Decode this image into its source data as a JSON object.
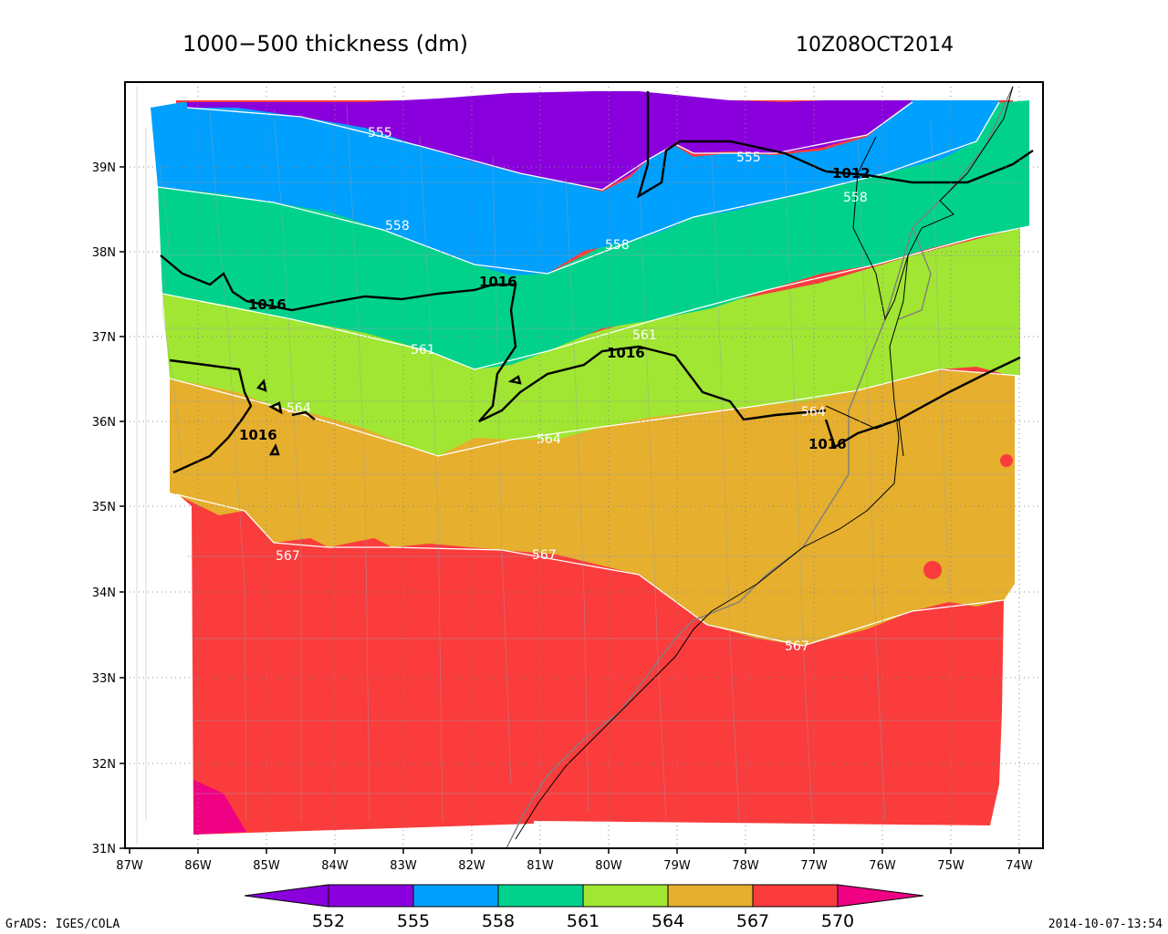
{
  "title": "1000−500 thickness (dm)",
  "valid_time": "10Z08OCT2014",
  "footer_left": "GrADS: IGES/COLA",
  "footer_right": "2014-10-07-13:54",
  "axes": {
    "lat_ticks": [
      "31N",
      "32N",
      "33N",
      "34N",
      "35N",
      "36N",
      "37N",
      "38N",
      "39N"
    ],
    "lon_ticks": [
      "87W",
      "86W",
      "85W",
      "84W",
      "83W",
      "82W",
      "81W",
      "80W",
      "79W",
      "78W",
      "77W",
      "76W",
      "75W",
      "74W"
    ]
  },
  "thickness_bands": [
    {
      "range": "552-555",
      "color": "#8a00dc"
    },
    {
      "range": "555-558",
      "color": "#00a0ff"
    },
    {
      "range": "558-561",
      "color": "#00d28c"
    },
    {
      "range": "561-564",
      "color": "#a0e632"
    },
    {
      "range": "564-567",
      "color": "#e6af2d"
    },
    {
      "range": "567-570",
      "color": "#fa3c3c"
    },
    {
      "range": "570+",
      "color": "#f00082"
    }
  ],
  "thickness_labels": [
    {
      "text": "555"
    },
    {
      "text": "555"
    },
    {
      "text": "558"
    },
    {
      "text": "558"
    },
    {
      "text": "558"
    },
    {
      "text": "561"
    },
    {
      "text": "561"
    },
    {
      "text": "564"
    },
    {
      "text": "564"
    },
    {
      "text": "564"
    },
    {
      "text": "567"
    },
    {
      "text": "567"
    },
    {
      "text": "567"
    }
  ],
  "isobar_labels": [
    {
      "text": "1012"
    },
    {
      "text": "1016"
    },
    {
      "text": "1016"
    },
    {
      "text": "1016"
    },
    {
      "text": "1016"
    },
    {
      "text": "1016"
    }
  ],
  "colorbar": {
    "colors": [
      "#8a00dc",
      "#8a00dc",
      "#00a0ff",
      "#00d28c",
      "#a0e632",
      "#e6af2d",
      "#fa3c3c",
      "#f00082"
    ],
    "labels": [
      "552",
      "555",
      "558",
      "561",
      "564",
      "567",
      "570"
    ]
  }
}
